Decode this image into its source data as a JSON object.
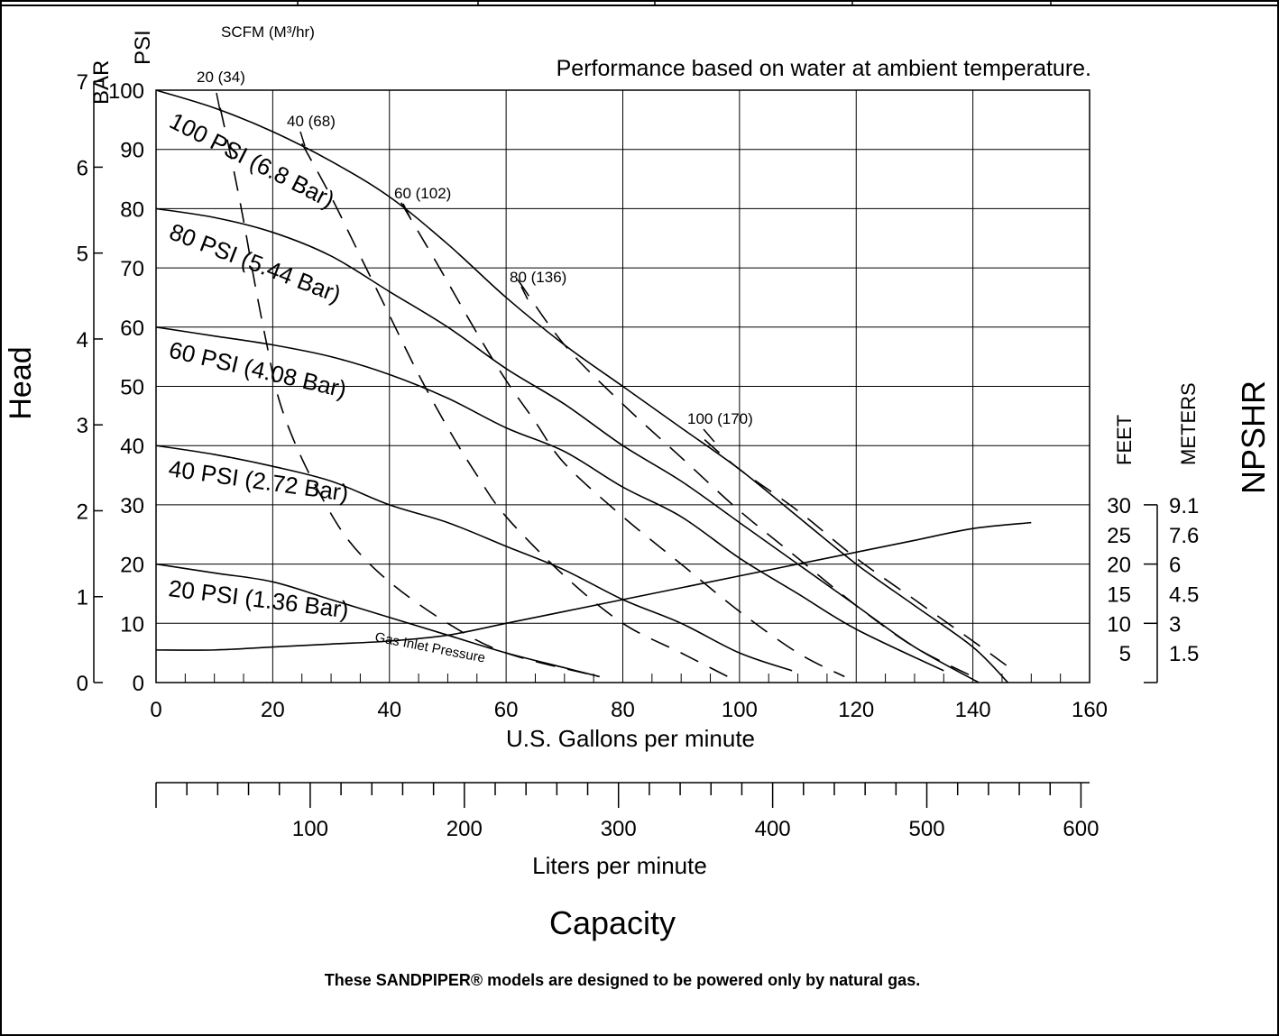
{
  "chart_data": {
    "type": "line",
    "title": "Performance based on water at ambient temperature.",
    "xlabel": "U.S. Gallons per minute",
    "x2label": "Liters per minute",
    "capacity_label": "Capacity",
    "ylabel": "Head",
    "ylabel_psi": "PSI",
    "ylabel_bar": "BAR",
    "scfm_label": "SCFM (M³/hr)",
    "npshr_label": "NPSHR",
    "npshr_feet_label": "FEET",
    "npshr_meters_label": "METERS",
    "xlim": [
      0,
      160
    ],
    "ylim": [
      0,
      100
    ],
    "grid": true,
    "x_ticks": [
      "0",
      "20",
      "40",
      "60",
      "80",
      "100",
      "120",
      "140",
      "160"
    ],
    "x_tick_values": [
      0,
      20,
      40,
      60,
      80,
      100,
      120,
      140,
      160
    ],
    "psi_ticks": [
      "0",
      "10",
      "20",
      "30",
      "40",
      "50",
      "60",
      "70",
      "80",
      "90",
      "100"
    ],
    "psi_tick_values": [
      0,
      10,
      20,
      30,
      40,
      50,
      60,
      70,
      80,
      90,
      100
    ],
    "bar_ticks": [
      "0",
      "1",
      "2",
      "3",
      "4",
      "5",
      "6",
      "7"
    ],
    "bar_tick_values": [
      0,
      1,
      2,
      3,
      4,
      5,
      6,
      7
    ],
    "lpm_ticks": [
      "100",
      "200",
      "300",
      "400",
      "500",
      "600"
    ],
    "lpm_tick_values": [
      100,
      200,
      300,
      400,
      500,
      600
    ],
    "lpm_minor_step": 20,
    "npshr_feet_ticks": [
      "30",
      "25",
      "20",
      "15",
      "10",
      "5"
    ],
    "npshr_meters_ticks": [
      "9.1",
      "7.6",
      "6",
      "4.5",
      "3",
      "1.5"
    ],
    "npshr_tick_values": [
      30,
      25,
      20,
      15,
      10,
      5
    ],
    "series": [
      {
        "name": "100 PSI (6.8 Bar)",
        "kind": "solid",
        "points": [
          [
            0,
            100
          ],
          [
            10,
            97
          ],
          [
            20,
            93
          ],
          [
            30,
            88
          ],
          [
            40,
            82
          ],
          [
            50,
            74
          ],
          [
            60,
            65
          ],
          [
            70,
            57
          ],
          [
            80,
            50
          ],
          [
            90,
            43
          ],
          [
            100,
            36
          ],
          [
            110,
            28
          ],
          [
            120,
            20
          ],
          [
            130,
            13
          ],
          [
            140,
            6
          ],
          [
            146,
            0
          ]
        ]
      },
      {
        "name": "80 PSI (5.44 Bar)",
        "kind": "solid",
        "points": [
          [
            0,
            80
          ],
          [
            10,
            78.5
          ],
          [
            20,
            76
          ],
          [
            30,
            72
          ],
          [
            40,
            66
          ],
          [
            50,
            60
          ],
          [
            60,
            53
          ],
          [
            70,
            47
          ],
          [
            80,
            40
          ],
          [
            90,
            34
          ],
          [
            100,
            27
          ],
          [
            110,
            20
          ],
          [
            120,
            13
          ],
          [
            130,
            6
          ],
          [
            141,
            0
          ]
        ]
      },
      {
        "name": "60 PSI (4.08 Bar)",
        "kind": "solid",
        "points": [
          [
            0,
            60
          ],
          [
            10,
            58.5
          ],
          [
            20,
            57
          ],
          [
            30,
            55
          ],
          [
            40,
            52
          ],
          [
            50,
            48
          ],
          [
            60,
            43
          ],
          [
            70,
            39
          ],
          [
            80,
            33
          ],
          [
            90,
            28
          ],
          [
            100,
            21
          ],
          [
            110,
            15
          ],
          [
            120,
            9
          ],
          [
            135,
            2
          ]
        ]
      },
      {
        "name": "40 PSI (2.72 Bar)",
        "kind": "solid",
        "points": [
          [
            0,
            40
          ],
          [
            10,
            38.5
          ],
          [
            20,
            36.5
          ],
          [
            30,
            34
          ],
          [
            40,
            30
          ],
          [
            50,
            27
          ],
          [
            60,
            23
          ],
          [
            70,
            19
          ],
          [
            80,
            14
          ],
          [
            90,
            10
          ],
          [
            100,
            5
          ],
          [
            109,
            2
          ]
        ]
      },
      {
        "name": "20 PSI (1.36 Bar)",
        "kind": "solid",
        "points": [
          [
            0,
            20
          ],
          [
            10,
            18.5
          ],
          [
            20,
            17
          ],
          [
            30,
            14
          ],
          [
            40,
            11
          ],
          [
            50,
            8
          ],
          [
            60,
            5
          ],
          [
            70,
            2.5
          ],
          [
            76,
            1
          ]
        ]
      },
      {
        "name": "Gas Inlet Pressure",
        "kind": "npshr",
        "points": [
          [
            0,
            5.5
          ],
          [
            10,
            5.5
          ],
          [
            20,
            6
          ],
          [
            30,
            6.5
          ],
          [
            40,
            7
          ],
          [
            50,
            8
          ],
          [
            60,
            10
          ],
          [
            70,
            12
          ],
          [
            80,
            14
          ],
          [
            90,
            16
          ],
          [
            100,
            18
          ],
          [
            110,
            20
          ],
          [
            120,
            22
          ],
          [
            130,
            24
          ],
          [
            140,
            26
          ],
          [
            150,
            27
          ]
        ]
      },
      {
        "name": "20 (34)",
        "kind": "dashed",
        "points": [
          [
            11,
            97
          ],
          [
            13,
            88
          ],
          [
            15,
            78
          ],
          [
            17,
            67
          ],
          [
            19,
            57
          ],
          [
            21,
            48
          ],
          [
            24,
            40
          ],
          [
            28,
            32
          ],
          [
            33,
            24
          ],
          [
            40,
            17
          ],
          [
            50,
            10
          ],
          [
            60,
            5
          ],
          [
            76,
            1
          ]
        ]
      },
      {
        "name": "40 (68)",
        "kind": "dashed",
        "points": [
          [
            25,
            91
          ],
          [
            30,
            82
          ],
          [
            35,
            72
          ],
          [
            40,
            62
          ],
          [
            45,
            52
          ],
          [
            50,
            43
          ],
          [
            55,
            35
          ],
          [
            60,
            28
          ],
          [
            70,
            18
          ],
          [
            80,
            10
          ],
          [
            90,
            5
          ],
          [
            98,
            1
          ]
        ]
      },
      {
        "name": "60 (102)",
        "kind": "dashed",
        "points": [
          [
            42,
            81
          ],
          [
            48,
            71
          ],
          [
            55,
            59
          ],
          [
            60,
            51
          ],
          [
            65,
            44
          ],
          [
            70,
            37
          ],
          [
            80,
            28
          ],
          [
            90,
            20
          ],
          [
            100,
            12
          ],
          [
            110,
            5
          ],
          [
            118,
            1
          ]
        ]
      },
      {
        "name": "80 (136)",
        "kind": "dashed",
        "points": [
          [
            62,
            68
          ],
          [
            70,
            57
          ],
          [
            80,
            47
          ],
          [
            90,
            38
          ],
          [
            100,
            29
          ],
          [
            110,
            21
          ],
          [
            120,
            13
          ],
          [
            130,
            6
          ],
          [
            140,
            1
          ]
        ]
      },
      {
        "name": "100 (170)",
        "kind": "dashed",
        "points": [
          [
            94,
            41
          ],
          [
            100,
            36
          ],
          [
            110,
            29
          ],
          [
            120,
            21
          ],
          [
            130,
            14
          ],
          [
            140,
            7
          ],
          [
            147,
            2
          ]
        ]
      }
    ]
  },
  "labels": {
    "psi100": "100 PSI (6.8 Bar)",
    "psi80": "80 PSI (5.44 Bar)",
    "psi60": "60 PSI (4.08 Bar)",
    "psi40": "40 PSI (2.72 Bar)",
    "psi20": "20 PSI (1.36 Bar)",
    "gas": "Gas Inlet Pressure",
    "scfm20": "20 (34)",
    "scfm40": "40 (68)",
    "scfm60": "60 (102)",
    "scfm80": "80 (136)",
    "scfm100": "100 (170)"
  },
  "footer_note": "These SANDPIPER® models are designed to be powered only by natural gas."
}
